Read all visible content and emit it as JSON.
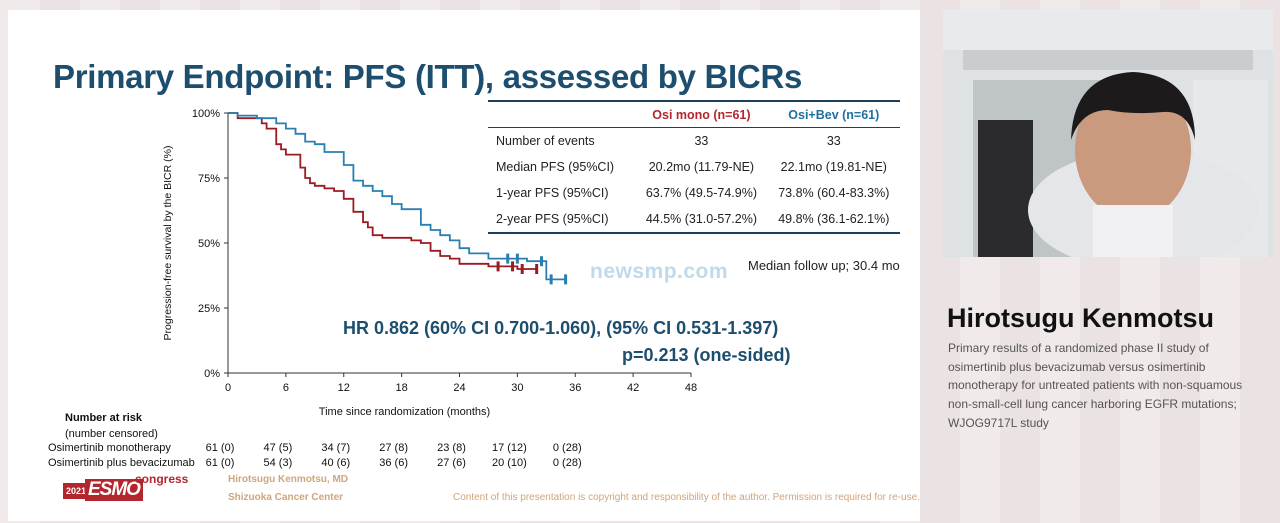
{
  "slide": {
    "title": "Primary Endpoint: PFS (ITT), assessed by BICRs",
    "watermark": "newsmp.com",
    "follow_up": "Median follow up; 30.4 mo",
    "hr_line": "HR 0.862 (60% CI 0.700-1.060), (95% CI 0.531-1.397)",
    "p_line": "p=0.213 (one-sided)",
    "table": {
      "headers": [
        "",
        "Osi mono (n=61)",
        "Osi+Bev (n=61)"
      ],
      "header_colors": [
        "#222222",
        "#b3262d",
        "#1f6f9f"
      ],
      "rows": [
        [
          "Number of events",
          "33",
          "33"
        ],
        [
          "Median PFS (95%CI)",
          "20.2mo (11.79-NE)",
          "22.1mo (19.81-NE)"
        ],
        [
          "1-year PFS (95%CI)",
          "63.7% (49.5-74.9%)",
          "73.8% (60.4-83.3%)"
        ],
        [
          "2-year PFS (95%CI)",
          "44.5% (31.0-57.2%)",
          "49.8% (36.1-62.1%)"
        ]
      ]
    },
    "risk": {
      "title": "Number at risk",
      "subtitle": "(number censored)",
      "rows": [
        {
          "label": "Osimertinib monotherapy",
          "values": [
            "61 (0)",
            "47 (5)",
            "34 (7)",
            "27 (8)",
            "23 (8)",
            "17 (12)",
            "0 (28)"
          ]
        },
        {
          "label": "Osimertinib plus bevacizumab",
          "values": [
            "61 (0)",
            "54 (3)",
            "40 (6)",
            "36 (6)",
            "27 (6)",
            "20 (10)",
            "0 (28)"
          ]
        }
      ]
    },
    "footer": {
      "logo_year": "2021",
      "logo_text": "ESMO",
      "logo_congress": "congress",
      "author": "Hirotsugu Kenmotsu, MD",
      "institution": "Shizuoka Cancer Center",
      "copyright": "Content of this presentation is copyright and responsibility of the author. Permission is required for re-use."
    }
  },
  "speaker": {
    "name": "Hirotsugu Kenmotsu",
    "description": "Primary results of a randomized phase II study of osimertinib plus bevacizumab versus osimertinib monotherapy for untreated patients with non-squamous non-small-cell lung cancer harboring EGFR mutations; WJOG9717L study"
  },
  "chart_data": {
    "type": "line",
    "xlabel": "Time since randomization (months)",
    "ylabel": "Progression-free survival by the BICR (%)",
    "x_ticks": [
      0,
      6,
      12,
      18,
      24,
      30,
      36,
      42,
      48
    ],
    "y_ticks": [
      "0%",
      "25%",
      "50%",
      "75%",
      "100%"
    ],
    "xlim": [
      0,
      48
    ],
    "ylim": [
      0,
      100
    ],
    "colors": {
      "osi_mono": "#9b1b23",
      "osi_bev": "#2a7fb0"
    },
    "series": [
      {
        "name": "Osi mono",
        "x": [
          0,
          1,
          3.5,
          4,
          5,
          5.5,
          6,
          7,
          7.5,
          8,
          8.5,
          9,
          10,
          11,
          12,
          13,
          14,
          14.5,
          15,
          16,
          16.5,
          17,
          18,
          19,
          20,
          21,
          22,
          23,
          24,
          27,
          28,
          29,
          30,
          31,
          32
        ],
        "y": [
          100,
          98,
          96,
          94,
          88,
          86,
          84,
          84,
          79,
          75,
          73,
          72,
          71,
          70,
          67,
          62,
          58,
          56,
          53,
          52,
          52,
          52,
          52,
          51,
          50,
          47,
          45,
          44,
          42,
          41,
          41,
          41,
          40,
          40,
          40
        ],
        "censored_x": [
          28,
          29.5,
          30.5,
          32
        ]
      },
      {
        "name": "Osi+Bev",
        "x": [
          0,
          1,
          3,
          5,
          6,
          7,
          8,
          9,
          10,
          12,
          13,
          14,
          15,
          16,
          17,
          18,
          20,
          21,
          22,
          23,
          24,
          25,
          27,
          29,
          30,
          31,
          32,
          33,
          34,
          35
        ],
        "y": [
          100,
          99,
          98,
          96,
          94,
          92,
          89,
          88,
          85,
          80,
          74,
          72,
          70,
          68,
          65,
          63,
          57,
          55,
          53,
          51,
          48,
          46,
          44,
          44,
          44,
          43,
          43,
          36,
          36,
          36
        ],
        "censored_x": [
          29,
          30,
          32.5,
          33.5,
          35
        ]
      }
    ]
  }
}
